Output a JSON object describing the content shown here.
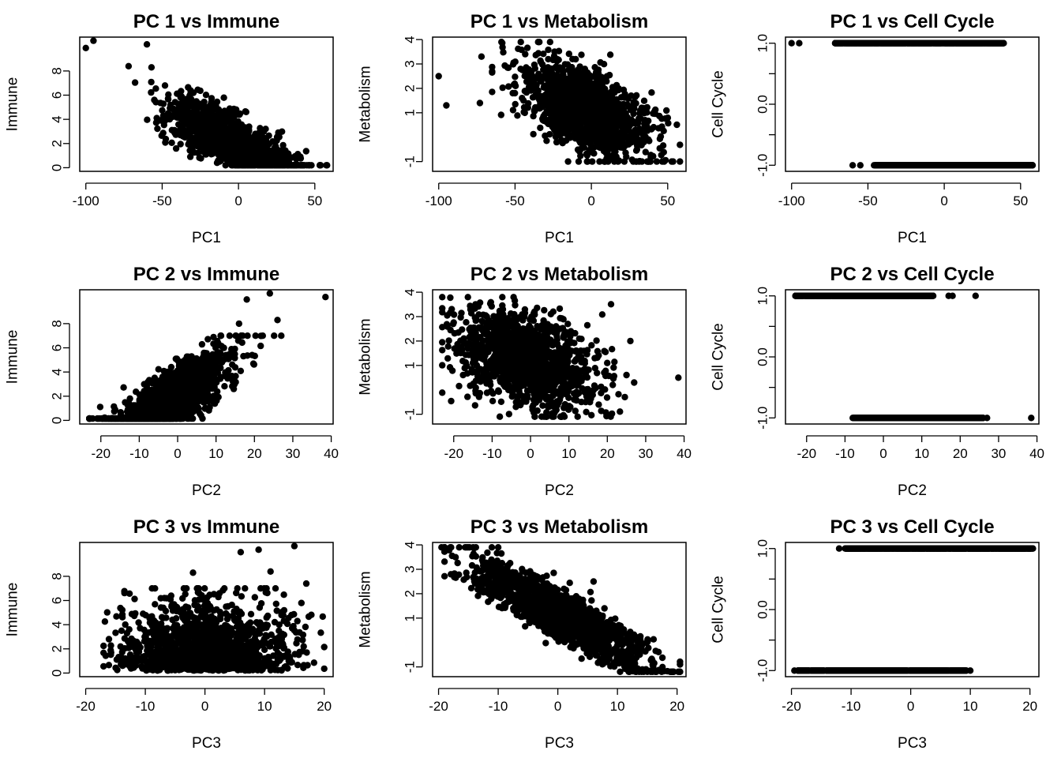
{
  "chart_data": [
    {
      "type": "scatter",
      "title": "PC 1 vs Immune",
      "xlabel": "PC1",
      "ylabel": "Immune",
      "xticks": [
        -100,
        -50,
        0,
        50
      ],
      "yticks": [
        0,
        2,
        4,
        6,
        8
      ],
      "xlim": [
        -104,
        62
      ],
      "ylim": [
        -0.3,
        10.8
      ],
      "grid": false,
      "pattern": "pc1_immune",
      "outliers": [
        {
          "x": -100,
          "y": 9.9
        },
        {
          "x": -95,
          "y": 10.5
        },
        {
          "x": -60,
          "y": 10.2
        },
        {
          "x": -72,
          "y": 8.4
        },
        {
          "x": -57,
          "y": 8.3
        }
      ]
    },
    {
      "type": "scatter",
      "title": "PC 1 vs Metabolism",
      "xlabel": "PC1",
      "ylabel": "Metabolism",
      "xticks": [
        -100,
        -50,
        0,
        50
      ],
      "yticks": [
        -1,
        1,
        2,
        3,
        4
      ],
      "xlim": [
        -104,
        62
      ],
      "ylim": [
        -1.4,
        4.1
      ],
      "grid": false,
      "pattern": "pc1_metab",
      "outliers": [
        {
          "x": -100,
          "y": 2.5
        },
        {
          "x": -95,
          "y": 1.3
        },
        {
          "x": -73,
          "y": 1.4
        },
        {
          "x": -72,
          "y": 3.3
        },
        {
          "x": -65,
          "y": 2.7
        }
      ]
    },
    {
      "type": "scatter",
      "title": "PC 1 vs Cell Cycle",
      "xlabel": "PC1",
      "ylabel": "Cell Cycle",
      "xticks": [
        -100,
        -50,
        0,
        50
      ],
      "yticks": [
        -1.0,
        -0.5,
        0.0,
        0.5,
        1.0
      ],
      "ytick_labels": [
        "-1.0",
        "",
        "0.0",
        "",
        "1.0"
      ],
      "xlim": [
        -104,
        62
      ],
      "ylim": [
        -1.1,
        1.1
      ],
      "grid": false,
      "pattern": "pc1_cc",
      "outliers": [
        {
          "x": -100,
          "y": 1.0
        },
        {
          "x": -95,
          "y": 1.0
        },
        {
          "x": -60,
          "y": -1.0
        },
        {
          "x": -55,
          "y": -1.0
        }
      ]
    },
    {
      "type": "scatter",
      "title": "PC 2 vs Immune",
      "xlabel": "PC2",
      "ylabel": "Immune",
      "xticks": [
        -20,
        -10,
        0,
        10,
        20,
        30,
        40
      ],
      "yticks": [
        0,
        2,
        4,
        6,
        8
      ],
      "xlim": [
        -25.5,
        40.5
      ],
      "ylim": [
        -0.3,
        10.8
      ],
      "grid": false,
      "pattern": "pc2_immune",
      "outliers": [
        {
          "x": 38.5,
          "y": 10.2
        },
        {
          "x": 24,
          "y": 10.5
        },
        {
          "x": 18,
          "y": 10.0
        },
        {
          "x": 26,
          "y": 8.3
        },
        {
          "x": 16,
          "y": 8.0
        }
      ]
    },
    {
      "type": "scatter",
      "title": "PC 2 vs Metabolism",
      "xlabel": "PC2",
      "ylabel": "Metabolism",
      "xticks": [
        -20,
        -10,
        0,
        10,
        20,
        30,
        40
      ],
      "yticks": [
        -1,
        1,
        2,
        3,
        4
      ],
      "xlim": [
        -25.5,
        40.5
      ],
      "ylim": [
        -1.4,
        4.1
      ],
      "grid": false,
      "pattern": "pc2_metab",
      "outliers": [
        {
          "x": 38.5,
          "y": 0.5
        },
        {
          "x": 27,
          "y": 0.3
        },
        {
          "x": 26,
          "y": 2.0
        }
      ]
    },
    {
      "type": "scatter",
      "title": "PC 2 vs Cell Cycle",
      "xlabel": "PC2",
      "ylabel": "Cell Cycle",
      "xticks": [
        -20,
        -10,
        0,
        10,
        20,
        30,
        40
      ],
      "yticks": [
        -1.0,
        -0.5,
        0.0,
        0.5,
        1.0
      ],
      "ytick_labels": [
        "-1.0",
        "",
        "0.0",
        "",
        "1.0"
      ],
      "xlim": [
        -25.5,
        40.5
      ],
      "ylim": [
        -1.1,
        1.1
      ],
      "grid": false,
      "pattern": "pc2_cc",
      "outliers": [
        {
          "x": 38.5,
          "y": -1.0
        },
        {
          "x": 27,
          "y": -1.0
        },
        {
          "x": 24,
          "y": 1.0
        },
        {
          "x": 17,
          "y": 1.0
        },
        {
          "x": 18,
          "y": 1.0
        }
      ]
    },
    {
      "type": "scatter",
      "title": "PC 3 vs Immune",
      "xlabel": "PC3",
      "ylabel": "Immune",
      "xticks": [
        -20,
        -10,
        0,
        10,
        20
      ],
      "yticks": [
        0,
        2,
        4,
        6,
        8
      ],
      "xlim": [
        -21,
        21.5
      ],
      "ylim": [
        -0.3,
        10.8
      ],
      "grid": false,
      "pattern": "pc3_immune",
      "outliers": [
        {
          "x": 15,
          "y": 10.5
        },
        {
          "x": 9,
          "y": 10.2
        },
        {
          "x": 6,
          "y": 10.0
        },
        {
          "x": 11,
          "y": 8.4
        },
        {
          "x": -2,
          "y": 8.3
        },
        {
          "x": 17,
          "y": 7.4
        }
      ]
    },
    {
      "type": "scatter",
      "title": "PC 3 vs Metabolism",
      "xlabel": "PC3",
      "ylabel": "Metabolism",
      "xticks": [
        -20,
        -10,
        0,
        10,
        20
      ],
      "yticks": [
        -1,
        1,
        2,
        3,
        4
      ],
      "xlim": [
        -21,
        21.5
      ],
      "ylim": [
        -1.4,
        4.1
      ],
      "grid": false,
      "pattern": "pc3_metab",
      "outliers": [
        {
          "x": -19.5,
          "y": 3.9
        },
        {
          "x": -10,
          "y": 3.9
        },
        {
          "x": 19,
          "y": -1.2
        },
        {
          "x": 20.5,
          "y": -0.9
        },
        {
          "x": 6,
          "y": 2.5
        }
      ]
    },
    {
      "type": "scatter",
      "title": "PC 3 vs Cell Cycle",
      "xlabel": "PC3",
      "ylabel": "Cell Cycle",
      "xticks": [
        -20,
        -10,
        0,
        10,
        20
      ],
      "yticks": [
        -1.0,
        -0.5,
        0.0,
        0.5,
        1.0
      ],
      "ytick_labels": [
        "-1.0",
        "",
        "0.0",
        "",
        "1.0"
      ],
      "xlim": [
        -21,
        21.5
      ],
      "ylim": [
        -1.1,
        1.1
      ],
      "grid": false,
      "pattern": "pc3_cc",
      "outliers": [
        {
          "x": -19.5,
          "y": -1.0
        },
        {
          "x": -12,
          "y": 1.0
        },
        {
          "x": 20.5,
          "y": 1.0
        },
        {
          "x": 10,
          "y": -1.0
        }
      ]
    }
  ]
}
